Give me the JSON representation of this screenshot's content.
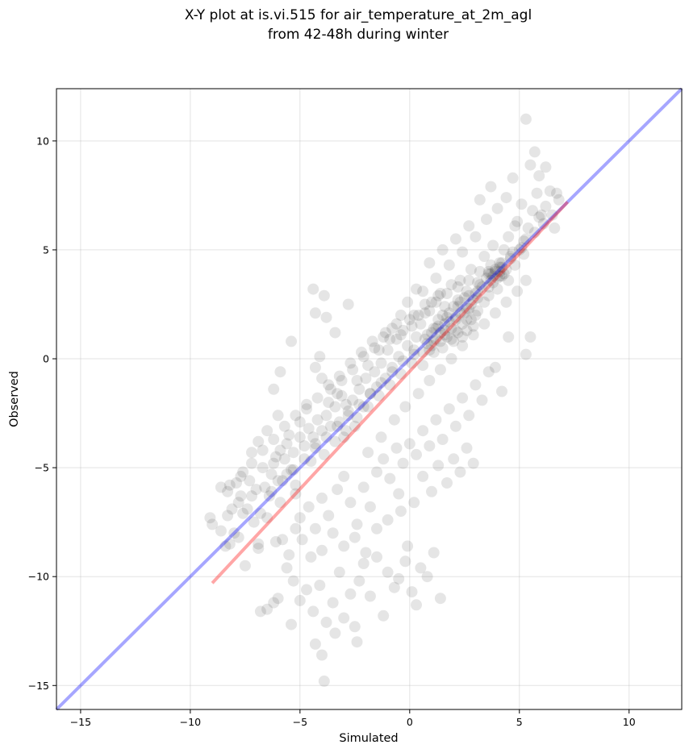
{
  "chart_data": {
    "type": "scatter",
    "title": "X-Y plot at is.vi.515 for air_temperature_at_2m_agl",
    "subtitle": "from 42-48h during winter",
    "xlabel": "Simulated",
    "ylabel": "Observed",
    "xlim": [
      -16.1,
      12.4
    ],
    "ylim": [
      -16.1,
      12.4
    ],
    "xticks": [
      -15,
      -10,
      -5,
      0,
      5,
      10
    ],
    "yticks": [
      -15,
      -10,
      -5,
      0,
      5,
      10
    ],
    "grid": true,
    "point_color": "#000000",
    "point_alpha": 0.1,
    "lines": [
      {
        "role": "identity",
        "color": "#0000ff",
        "x": [
          -16.1,
          12.4
        ],
        "y": [
          -16.1,
          12.4
        ]
      },
      {
        "role": "fit",
        "color": "#ff0000",
        "x": [
          -9.0,
          7.2
        ],
        "y": [
          -10.3,
          7.2
        ]
      }
    ],
    "points": [
      [
        -9.1,
        -7.3
      ],
      [
        -9.0,
        -7.6
      ],
      [
        -8.6,
        -7.9
      ],
      [
        -8.3,
        -7.2
      ],
      [
        -8.4,
        -8.6
      ],
      [
        -8.2,
        -8.5
      ],
      [
        -8.0,
        -8.0
      ],
      [
        -7.8,
        -8.2
      ],
      [
        -7.6,
        -7.1
      ],
      [
        -7.8,
        -6.6
      ],
      [
        -7.4,
        -6.9
      ],
      [
        -7.2,
        -6.3
      ],
      [
        -7.0,
        -6.0
      ],
      [
        -7.1,
        -7.5
      ],
      [
        -6.8,
        -7.1
      ],
      [
        -6.9,
        -8.7
      ],
      [
        -6.6,
        -5.9
      ],
      [
        -6.4,
        -6.3
      ],
      [
        -6.3,
        -5.3
      ],
      [
        -6.2,
        -4.8
      ],
      [
        -6.0,
        -5.6
      ],
      [
        -5.9,
        -4.2
      ],
      [
        -5.7,
        -4.6
      ],
      [
        -5.6,
        -3.9
      ],
      [
        -5.4,
        -5.1
      ],
      [
        -5.2,
        -5.8
      ],
      [
        -5.3,
        -4.3
      ],
      [
        -5.0,
        -3.6
      ],
      [
        -4.8,
        -4.0
      ],
      [
        -4.6,
        -3.2
      ],
      [
        -4.5,
        -4.7
      ],
      [
        -4.3,
        -3.9
      ],
      [
        -4.2,
        -2.8
      ],
      [
        -4.0,
        -3.3
      ],
      [
        -3.9,
        -4.4
      ],
      [
        -3.8,
        -2.6
      ],
      [
        -3.6,
        -3.1
      ],
      [
        -3.4,
        -2.2
      ],
      [
        -3.2,
        -2.9
      ],
      [
        -3.1,
        -1.7
      ],
      [
        -3.0,
        -3.6
      ],
      [
        -2.8,
        -2.4
      ],
      [
        -2.6,
        -1.9
      ],
      [
        -2.5,
        -3.1
      ],
      [
        -2.3,
        -1.4
      ],
      [
        -2.1,
        -2.2
      ],
      [
        -2.0,
        -0.9
      ],
      [
        -1.8,
        -1.6
      ],
      [
        -1.6,
        -0.6
      ],
      [
        -1.5,
        -1.3
      ],
      [
        -1.3,
        -0.2
      ],
      [
        -1.1,
        -0.9
      ],
      [
        -1.0,
        0.4
      ],
      [
        -0.8,
        -0.4
      ],
      [
        -0.6,
        0.9
      ],
      [
        -0.5,
        0.1
      ],
      [
        -0.3,
        1.3
      ],
      [
        -0.1,
        0.6
      ],
      [
        0.0,
        1.8
      ],
      [
        0.2,
        0.2
      ],
      [
        0.3,
        1.0
      ],
      [
        0.5,
        1.6
      ],
      [
        0.6,
        -0.3
      ],
      [
        0.8,
        0.7
      ],
      [
        0.9,
        2.2
      ],
      [
        1.0,
        1.2
      ],
      [
        1.1,
        0.3
      ],
      [
        1.2,
        2.6
      ],
      [
        1.3,
        1.5
      ],
      [
        1.4,
        0.8
      ],
      [
        1.5,
        2.0
      ],
      [
        1.6,
        1.1
      ],
      [
        1.7,
        3.0
      ],
      [
        1.8,
        1.7
      ],
      [
        1.9,
        0.9
      ],
      [
        2.0,
        2.4
      ],
      [
        2.1,
        1.3
      ],
      [
        2.2,
        3.3
      ],
      [
        2.3,
        2.1
      ],
      [
        2.4,
        1.0
      ],
      [
        2.5,
        2.8
      ],
      [
        2.6,
        1.8
      ],
      [
        2.7,
        3.6
      ],
      [
        2.8,
        2.5
      ],
      [
        2.9,
        1.5
      ],
      [
        3.0,
        3.0
      ],
      [
        3.1,
        2.2
      ],
      [
        3.2,
        4.0
      ],
      [
        3.3,
        3.3
      ],
      [
        3.4,
        2.6
      ],
      [
        3.5,
        3.7
      ],
      [
        3.6,
        2.9
      ],
      [
        3.7,
        4.3
      ],
      [
        3.8,
        3.5
      ],
      [
        3.9,
        4.0
      ],
      [
        4.0,
        3.2
      ],
      [
        4.1,
        4.4
      ],
      [
        4.2,
        3.8
      ],
      [
        4.3,
        5.0
      ],
      [
        4.4,
        4.1
      ],
      [
        4.5,
        3.6
      ],
      [
        4.6,
        4.7
      ],
      [
        4.8,
        4.3
      ],
      [
        5.0,
        5.0
      ],
      [
        5.2,
        4.8
      ],
      [
        5.3,
        5.5
      ],
      [
        4.9,
        6.3
      ],
      [
        5.1,
        7.1
      ],
      [
        5.4,
        6.0
      ],
      [
        5.6,
        6.8
      ],
      [
        5.8,
        7.6
      ],
      [
        6.0,
        6.6
      ],
      [
        6.2,
        8.8
      ],
      [
        6.4,
        7.7
      ],
      [
        6.6,
        6.0
      ],
      [
        6.8,
        7.3
      ],
      [
        5.7,
        9.5
      ],
      [
        5.9,
        8.4
      ],
      [
        5.5,
        8.9
      ],
      [
        5.3,
        11.0
      ],
      [
        4.7,
        8.3
      ],
      [
        4.4,
        7.4
      ],
      [
        4.0,
        6.9
      ],
      [
        3.7,
        7.9
      ],
      [
        3.5,
        6.4
      ],
      [
        3.2,
        7.3
      ],
      [
        3.0,
        5.6
      ],
      [
        2.7,
        6.1
      ],
      [
        2.4,
        4.9
      ],
      [
        2.1,
        5.5
      ],
      [
        1.8,
        4.3
      ],
      [
        1.5,
        5.0
      ],
      [
        1.2,
        3.7
      ],
      [
        0.9,
        4.4
      ],
      [
        0.6,
        3.1
      ],
      [
        0.3,
        3.2
      ],
      [
        -0.1,
        2.6
      ],
      [
        -0.4,
        2.0
      ],
      [
        -0.8,
        1.4
      ],
      [
        -1.2,
        1.0
      ],
      [
        -1.6,
        0.5
      ],
      [
        -2.1,
        0.1
      ],
      [
        -2.6,
        -0.5
      ],
      [
        -3.1,
        -1.0
      ],
      [
        -3.6,
        -1.4
      ],
      [
        -4.0,
        -0.9
      ],
      [
        -4.3,
        -0.4
      ],
      [
        -4.1,
        0.1
      ],
      [
        -3.4,
        1.2
      ],
      [
        -3.8,
        1.9
      ],
      [
        -4.3,
        2.1
      ],
      [
        -3.9,
        2.9
      ],
      [
        -4.4,
        3.2
      ],
      [
        -2.8,
        2.5
      ],
      [
        -5.4,
        0.8
      ],
      [
        -5.9,
        -0.6
      ],
      [
        -6.2,
        -1.4
      ],
      [
        -6.0,
        -2.6
      ],
      [
        -6.5,
        -3.3
      ],
      [
        -6.9,
        -3.8
      ],
      [
        -7.2,
        -4.3
      ],
      [
        -7.6,
        -5.2
      ],
      [
        -7.9,
        -5.7
      ],
      [
        -8.3,
        -6.1
      ],
      [
        -8.6,
        -5.9
      ],
      [
        -8.1,
        -6.9
      ],
      [
        -7.7,
        -6.3
      ],
      [
        -7.3,
        -5.6
      ],
      [
        -6.7,
        -5.0
      ],
      [
        -6.1,
        -4.5
      ],
      [
        -5.5,
        -3.5
      ],
      [
        -5.0,
        -2.9
      ],
      [
        -4.7,
        -2.3
      ],
      [
        -4.4,
        -3.6
      ],
      [
        -3.7,
        -2.0
      ],
      [
        -3.3,
        -1.6
      ],
      [
        -2.9,
        -2.1
      ],
      [
        -2.4,
        -1.0
      ],
      [
        -1.9,
        -0.3
      ],
      [
        -1.4,
        0.4
      ],
      [
        -0.9,
        0.9
      ],
      [
        -0.4,
        1.1
      ],
      [
        0.1,
        1.5
      ],
      [
        0.4,
        2.0
      ],
      [
        0.7,
        2.5
      ],
      [
        1.3,
        2.9
      ],
      [
        1.6,
        2.4
      ],
      [
        2.2,
        2.7
      ],
      [
        2.6,
        3.1
      ],
      [
        3.1,
        3.5
      ],
      [
        3.6,
        3.9
      ],
      [
        4.1,
        4.2
      ],
      [
        4.6,
        4.6
      ],
      [
        5.1,
        5.1
      ],
      [
        -5.6,
        -5.3
      ],
      [
        -5.2,
        -6.2
      ],
      [
        -5.0,
        -7.3
      ],
      [
        -4.6,
        -6.8
      ],
      [
        -4.3,
        -7.8
      ],
      [
        -4.0,
        -6.4
      ],
      [
        -3.7,
        -7.2
      ],
      [
        -3.3,
        -6.0
      ],
      [
        -3.0,
        -5.4
      ],
      [
        -2.7,
        -6.6
      ],
      [
        -2.4,
        -7.6
      ],
      [
        -2.1,
        -5.9
      ],
      [
        -1.8,
        -6.8
      ],
      [
        -1.5,
        -5.2
      ],
      [
        -1.2,
        -4.6
      ],
      [
        -0.9,
        -5.5
      ],
      [
        -0.6,
        -4.1
      ],
      [
        -0.3,
        -4.8
      ],
      [
        0.0,
        -3.9
      ],
      [
        0.3,
        -4.4
      ],
      [
        0.6,
        -3.3
      ],
      [
        0.9,
        -4.0
      ],
      [
        1.2,
        -2.8
      ],
      [
        1.5,
        -3.7
      ],
      [
        1.8,
        -2.3
      ],
      [
        2.1,
        -3.1
      ],
      [
        2.4,
        -1.8
      ],
      [
        2.7,
        -2.6
      ],
      [
        3.0,
        -1.2
      ],
      [
        3.3,
        -1.9
      ],
      [
        3.6,
        -0.6
      ],
      [
        3.9,
        -0.4
      ],
      [
        4.2,
        -1.5
      ],
      [
        4.5,
        1.0
      ],
      [
        5.5,
        1.0
      ],
      [
        5.3,
        0.2
      ],
      [
        -5.8,
        -8.3
      ],
      [
        -5.5,
        -9.0
      ],
      [
        -5.3,
        -10.2
      ],
      [
        -5.6,
        -9.6
      ],
      [
        -5.0,
        -11.1
      ],
      [
        -4.7,
        -10.6
      ],
      [
        -4.4,
        -11.6
      ],
      [
        -4.1,
        -10.4
      ],
      [
        -3.8,
        -12.1
      ],
      [
        -3.5,
        -11.2
      ],
      [
        -3.2,
        -9.8
      ],
      [
        -3.0,
        -11.9
      ],
      [
        -2.7,
        -10.8
      ],
      [
        -2.5,
        -12.3
      ],
      [
        -2.3,
        -10.2
      ],
      [
        -2.1,
        -9.4
      ],
      [
        -1.8,
        -10.9
      ],
      [
        -1.5,
        -9.1
      ],
      [
        -1.2,
        -11.8
      ],
      [
        -1.0,
        -9.8
      ],
      [
        -0.7,
        -10.5
      ],
      [
        -0.5,
        -10.1
      ],
      [
        -0.2,
        -9.3
      ],
      [
        0.1,
        -10.7
      ],
      [
        0.3,
        -11.3
      ],
      [
        0.5,
        -9.6
      ],
      [
        0.8,
        -10.0
      ],
      [
        1.1,
        -8.9
      ],
      [
        1.4,
        -11.0
      ],
      [
        -0.4,
        -7.0
      ],
      [
        -0.1,
        -8.6
      ],
      [
        -5.4,
        -12.2
      ],
      [
        -6.0,
        -11.0
      ],
      [
        -6.5,
        -11.5
      ],
      [
        -4.3,
        -13.1
      ],
      [
        -4.0,
        -13.6
      ],
      [
        -3.9,
        -14.8
      ],
      [
        -2.4,
        -13.0
      ],
      [
        -3.4,
        -12.6
      ],
      [
        -6.8,
        -11.6
      ],
      [
        -6.2,
        -11.2
      ],
      [
        -6.1,
        -8.4
      ],
      [
        -6.9,
        -8.5
      ],
      [
        -7.5,
        -9.5
      ],
      [
        -6.5,
        -7.3
      ],
      [
        -5.9,
        -6.6
      ],
      [
        -5.2,
        -7.8
      ],
      [
        -4.9,
        -8.3
      ],
      [
        -4.5,
        -9.1
      ],
      [
        -4.0,
        -8.8
      ],
      [
        -3.5,
        -8.0
      ],
      [
        -3.0,
        -8.6
      ],
      [
        -2.5,
        -8.2
      ],
      [
        -2.0,
        -8.9
      ],
      [
        -1.5,
        -7.8
      ],
      [
        -1.0,
        -7.4
      ],
      [
        -0.5,
        -6.2
      ],
      [
        0.2,
        -6.6
      ],
      [
        0.6,
        -5.4
      ],
      [
        1.0,
        -6.1
      ],
      [
        1.3,
        -4.9
      ],
      [
        1.7,
        -5.7
      ],
      [
        2.0,
        -4.6
      ],
      [
        2.3,
        -5.2
      ],
      [
        2.6,
        -4.1
      ],
      [
        2.9,
        -4.8
      ],
      [
        -1.9,
        -4.3
      ],
      [
        -1.3,
        -3.6
      ],
      [
        -0.7,
        -2.8
      ],
      [
        -0.2,
        -2.2
      ],
      [
        0.4,
        -1.6
      ],
      [
        0.9,
        -1.0
      ],
      [
        1.4,
        -0.5
      ],
      [
        1.9,
        0.0
      ],
      [
        2.4,
        0.6
      ],
      [
        2.9,
        1.1
      ],
      [
        3.4,
        1.6
      ],
      [
        3.9,
        2.1
      ],
      [
        4.4,
        2.6
      ],
      [
        4.9,
        3.1
      ],
      [
        5.3,
        3.6
      ],
      [
        -3.4,
        -3.8
      ],
      [
        -2.9,
        -3.3
      ],
      [
        -2.4,
        -2.7
      ],
      [
        -1.9,
        -2.2
      ],
      [
        -1.4,
        -1.7
      ],
      [
        -0.9,
        -1.2
      ],
      [
        -0.4,
        -0.7
      ],
      [
        0.1,
        -0.2
      ],
      [
        0.6,
        0.3
      ],
      [
        1.1,
        0.8
      ],
      [
        1.6,
        1.3
      ],
      [
        2.1,
        1.8
      ],
      [
        2.6,
        2.3
      ],
      [
        3.1,
        2.8
      ],
      [
        3.6,
        3.3
      ],
      [
        4.1,
        3.8
      ],
      [
        -6.3,
        -6.1
      ],
      [
        -5.8,
        -5.6
      ],
      [
        -5.3,
        -5.1
      ],
      [
        -4.8,
        -4.6
      ],
      [
        -4.3,
        -4.1
      ],
      [
        -3.8,
        -3.6
      ],
      [
        -3.3,
        -3.1
      ],
      [
        -2.8,
        -2.6
      ],
      [
        -2.3,
        -2.1
      ],
      [
        -1.8,
        -1.6
      ],
      [
        -1.3,
        -1.1
      ],
      [
        -0.8,
        -0.6
      ],
      [
        -0.3,
        -0.1
      ],
      [
        0.2,
        0.4
      ],
      [
        0.7,
        0.9
      ],
      [
        1.2,
        1.4
      ],
      [
        1.7,
        1.9
      ],
      [
        2.2,
        2.4
      ],
      [
        2.7,
        2.9
      ],
      [
        3.2,
        3.4
      ],
      [
        3.7,
        3.9
      ],
      [
        4.2,
        4.4
      ],
      [
        4.7,
        4.9
      ],
      [
        5.2,
        5.4
      ],
      [
        5.7,
        5.8
      ],
      [
        6.1,
        6.2
      ],
      [
        6.5,
        6.6
      ],
      [
        6.7,
        7.6
      ],
      [
        6.2,
        7.0
      ],
      [
        5.9,
        6.5
      ],
      [
        4.8,
        6.1
      ],
      [
        4.5,
        5.6
      ],
      [
        3.8,
        5.2
      ],
      [
        3.4,
        4.7
      ],
      [
        2.8,
        4.1
      ],
      [
        2.3,
        3.6
      ],
      [
        1.9,
        3.4
      ],
      [
        1.4,
        3.0
      ],
      [
        1.0,
        2.6
      ],
      [
        0.7,
        2.1
      ],
      [
        0.2,
        2.0
      ],
      [
        -0.6,
        1.6
      ],
      [
        -1.1,
        1.2
      ],
      [
        -1.7,
        0.8
      ],
      [
        -2.2,
        0.3
      ],
      [
        -2.7,
        -0.2
      ],
      [
        -3.2,
        -0.8
      ],
      [
        -3.7,
        -1.2
      ],
      [
        -4.2,
        -1.8
      ],
      [
        -4.7,
        -2.1
      ],
      [
        -5.2,
        -2.6
      ],
      [
        -5.7,
        -3.1
      ],
      [
        -6.2,
        -3.7
      ],
      [
        -6.7,
        -4.2
      ],
      [
        -7.2,
        -4.8
      ],
      [
        -7.7,
        -5.4
      ],
      [
        -8.2,
        -5.8
      ],
      [
        1.6,
        1.6
      ],
      [
        1.7,
        1.0
      ],
      [
        1.8,
        2.1
      ],
      [
        1.9,
        1.4
      ],
      [
        2.0,
        0.8
      ],
      [
        2.1,
        1.9
      ],
      [
        2.2,
        1.2
      ],
      [
        2.3,
        2.6
      ],
      [
        2.4,
        1.6
      ],
      [
        2.5,
        2.1
      ],
      [
        2.6,
        1.3
      ],
      [
        2.7,
        2.3
      ],
      [
        2.8,
        1.8
      ],
      [
        2.9,
        2.7
      ],
      [
        3.0,
        2.0
      ],
      [
        3.1,
        3.1
      ],
      [
        1.0,
        0.6
      ],
      [
        1.1,
        1.4
      ],
      [
        1.2,
        0.9
      ],
      [
        1.3,
        1.8
      ],
      [
        1.4,
        1.2
      ],
      [
        1.5,
        0.5
      ],
      [
        0.8,
        1.1
      ],
      [
        0.9,
        0.4
      ],
      [
        3.8,
        3.8
      ],
      [
        3.9,
        4.1
      ],
      [
        4.0,
        3.7
      ],
      [
        4.1,
        4.0
      ],
      [
        4.2,
        4.2
      ],
      [
        4.3,
        3.9
      ],
      [
        3.7,
        3.6
      ],
      [
        3.6,
        4.0
      ]
    ]
  }
}
